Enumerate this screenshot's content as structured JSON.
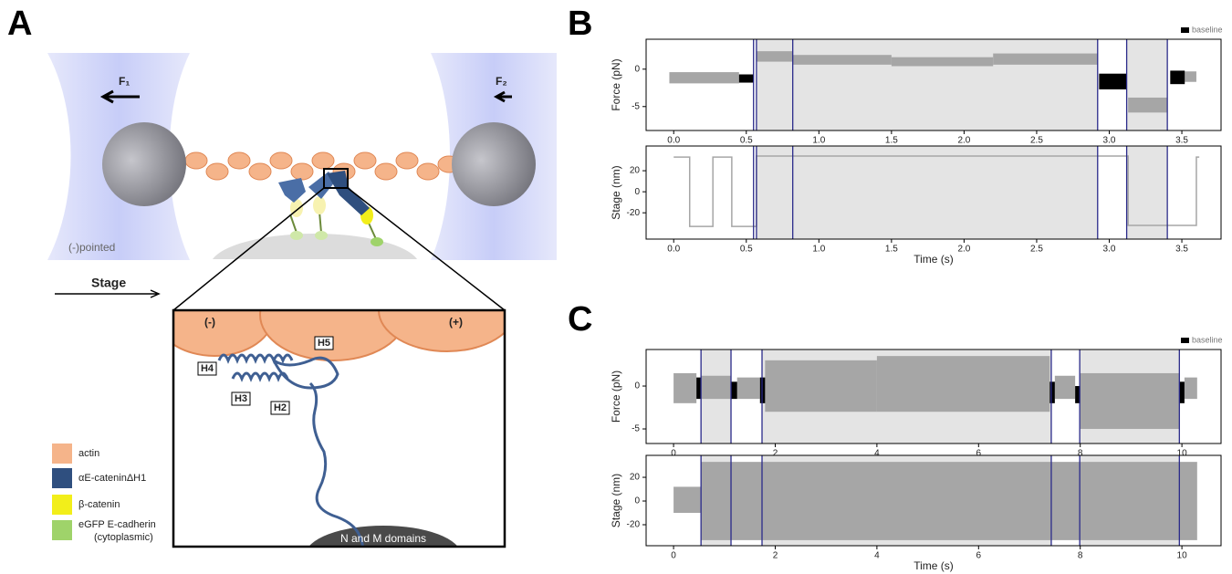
{
  "panel_labels": [
    "A",
    "B",
    "C"
  ],
  "panel_a": {
    "force_left": "F₁",
    "force_right": "F₂",
    "pointed_end": "(-)pointed",
    "stage": "Stage",
    "minus": "(-)",
    "plus": "(+)",
    "helices": [
      "H5",
      "H4",
      "H3",
      "H2"
    ],
    "domains": "N and M domains",
    "legend": [
      {
        "label": "actin",
        "color": "#f5b48a"
      },
      {
        "label": "αE-cateninΔH1",
        "color": "#2f4f7f"
      },
      {
        "label": "β-catenin",
        "color": "#f2ee1a"
      },
      {
        "label": "eGFP E-cadherin",
        "sublabel": "(cytoplasmic)",
        "color": "#9fd36a"
      }
    ]
  },
  "chart_data": [
    {
      "type": "band",
      "ylabel": "Force (pN)",
      "xlim": [
        -0.19,
        3.77
      ],
      "ylim": [
        -8.2,
        4.0
      ],
      "xticks": [
        {
          "value": 0,
          "label": "0.0"
        },
        0.5,
        {
          "value": 1,
          "label": "1.0"
        },
        1.5,
        {
          "value": 2,
          "label": "2.0"
        },
        2.5,
        {
          "value": 3,
          "label": "3.0"
        },
        3.5
      ],
      "yticks": [
        -5,
        0
      ],
      "shaded": [
        [
          0.57,
          2.92
        ],
        [
          3.12,
          3.4
        ]
      ],
      "shade_color": "#e4e4e4",
      "vlines": [
        0.55,
        0.57,
        0.82,
        2.92,
        3.12,
        3.4
      ],
      "vline_color": "#2a2a8a",
      "series": [
        {
          "color": "#a6a6a6",
          "segments": [
            {
              "x": [
                -0.03,
                0.45
              ],
              "low": -1.9,
              "high": -0.4
            },
            {
              "x": [
                0.57,
                0.82
              ],
              "low": 1.0,
              "high": 2.4
            },
            {
              "x": [
                0.82,
                1.5
              ],
              "low": 0.6,
              "high": 1.9
            },
            {
              "x": [
                1.5,
                2.2
              ],
              "low": 0.4,
              "high": 1.6
            },
            {
              "x": [
                2.2,
                2.92
              ],
              "low": 0.6,
              "high": 2.1
            },
            {
              "x": [
                3.13,
                3.4
              ],
              "low": -5.8,
              "high": -3.8
            },
            {
              "x": [
                3.52,
                3.6
              ],
              "low": -1.7,
              "high": -0.3
            }
          ]
        },
        {
          "name": "baseline",
          "color": "#000000",
          "segments": [
            {
              "x": [
                0.45,
                0.55
              ],
              "low": -1.8,
              "high": -0.7
            },
            {
              "x": [
                2.93,
                3.12
              ],
              "low": -2.7,
              "high": -0.6
            },
            {
              "x": [
                3.42,
                3.52
              ],
              "low": -2.0,
              "high": -0.2
            }
          ]
        }
      ]
    },
    {
      "type": "line",
      "ylabel": "Stage (nm)",
      "xlabel": "Time (s)",
      "xlim": [
        -0.19,
        3.77
      ],
      "ylim": [
        -45,
        43.5
      ],
      "xticks": [
        {
          "value": 0,
          "label": "0.0"
        },
        0.5,
        {
          "value": 1,
          "label": "1.0"
        },
        1.5,
        {
          "value": 2,
          "label": "2.0"
        },
        2.5,
        {
          "value": 3,
          "label": "3.0"
        },
        3.5
      ],
      "yticks": [
        -20,
        0,
        20
      ],
      "shaded": [
        [
          0.57,
          2.92
        ],
        [
          3.12,
          3.4
        ]
      ],
      "shade_color": "#e4e4e4",
      "vlines": [
        0.55,
        0.57,
        0.82,
        2.92,
        3.12,
        3.4
      ],
      "vline_color": "#2a2a8a",
      "series": [
        {
          "color": "#a6a6a6",
          "x": [
            0,
            0.11,
            0.11,
            0.27,
            0.27,
            0.4,
            0.4,
            0.57,
            0.57,
            3.13,
            3.13,
            3.6,
            3.6,
            3.62
          ],
          "values": [
            33,
            33,
            -33,
            -33,
            33,
            33,
            -33,
            -33,
            34,
            34,
            -32,
            -32,
            33,
            33
          ]
        }
      ]
    },
    {
      "type": "band",
      "ylabel": "Force (pN)",
      "xlim": [
        -0.54,
        10.77
      ],
      "ylim": [
        -6.7,
        4.26
      ],
      "xticks": [
        0,
        2,
        4,
        6,
        8,
        10
      ],
      "yticks": [
        -5,
        0
      ],
      "shaded": [
        [
          0.54,
          1.13
        ],
        [
          1.74,
          7.43
        ],
        [
          7.99,
          9.95
        ]
      ],
      "shade_color": "#e4e4e4",
      "vlines": [
        0.54,
        1.13,
        1.74,
        7.43,
        7.99,
        9.95
      ],
      "vline_color": "#2a2a8a",
      "series": [
        {
          "color": "#a6a6a6",
          "segments": [
            {
              "x": [
                0,
                0.45
              ],
              "low": -2,
              "high": 1.5
            },
            {
              "x": [
                0.54,
                1.13
              ],
              "low": -1.5,
              "high": 1.2
            },
            {
              "x": [
                1.25,
                1.7
              ],
              "low": -1.5,
              "high": 1
            },
            {
              "x": [
                1.8,
                4
              ],
              "low": -3,
              "high": 3
            },
            {
              "x": [
                4,
                7.4
              ],
              "low": -3,
              "high": 3.5
            },
            {
              "x": [
                7.5,
                7.9
              ],
              "low": -1.5,
              "high": 1.2
            },
            {
              "x": [
                8,
                9.95
              ],
              "low": -5,
              "high": 1.5
            },
            {
              "x": [
                10.05,
                10.3
              ],
              "low": -1.5,
              "high": 1
            }
          ]
        },
        {
          "name": "baseline",
          "color": "#000000",
          "segments": [
            {
              "x": [
                0.45,
                0.54
              ],
              "low": -1.5,
              "high": 1
            },
            {
              "x": [
                1.13,
                1.25
              ],
              "low": -1.5,
              "high": 0.5
            },
            {
              "x": [
                1.7,
                1.8
              ],
              "low": -2,
              "high": 1
            },
            {
              "x": [
                7.4,
                7.5
              ],
              "low": -2,
              "high": 0.5
            },
            {
              "x": [
                7.9,
                8.0
              ],
              "low": -2,
              "high": 0
            },
            {
              "x": [
                9.95,
                10.05
              ],
              "low": -2,
              "high": 0.5
            }
          ]
        }
      ]
    },
    {
      "type": "band",
      "ylabel": "Stage (nm)",
      "xlabel": "Time (s)",
      "xlim": [
        -0.54,
        10.77
      ],
      "ylim": [
        -37.7,
        38.5
      ],
      "xticks": [
        0,
        2,
        4,
        6,
        8,
        10
      ],
      "yticks": [
        -20,
        0,
        20
      ],
      "shaded": [
        [
          0.54,
          1.13
        ],
        [
          1.74,
          7.43
        ],
        [
          7.99,
          9.95
        ]
      ],
      "shade_color": "#e4e4e4",
      "vlines": [
        0.54,
        1.13,
        1.74,
        7.43,
        7.99,
        9.95
      ],
      "vline_color": "#2a2a8a",
      "series": [
        {
          "color": "#a6a6a6",
          "segments": [
            {
              "x": [
                0,
                0.54
              ],
              "low": -10,
              "high": 12
            },
            {
              "x": [
                0.54,
                10.3
              ],
              "low": -33,
              "high": 33
            }
          ]
        }
      ]
    }
  ]
}
